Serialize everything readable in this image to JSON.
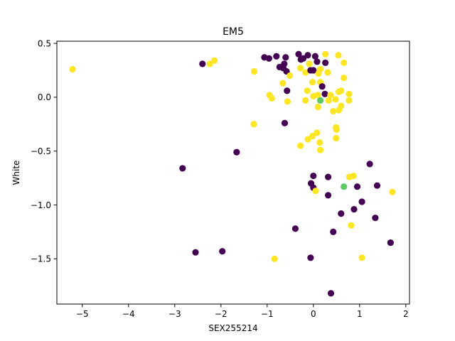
{
  "chart_data": {
    "type": "scatter",
    "title": "EM5",
    "xlabel": "SEX255214",
    "ylabel": "White",
    "xlim": [
      -5.55,
      2.08
    ],
    "ylim": [
      -1.92,
      0.52
    ],
    "xticks": [
      -5,
      -4,
      -3,
      -2,
      -1,
      0,
      1,
      2
    ],
    "xtick_labels": [
      "−5",
      "−4",
      "−3",
      "−2",
      "−1",
      "0",
      "1",
      "2"
    ],
    "yticks": [
      -1.5,
      -1.0,
      -0.5,
      0.0,
      0.5
    ],
    "ytick_labels": [
      "−1.5",
      "−1.0",
      "−0.5",
      "0.0",
      "0.5"
    ],
    "grid": false,
    "legend": false,
    "colors": {
      "purple": "#440154",
      "yellow": "#fde725",
      "green": "#5ec962"
    },
    "points": [
      {
        "x": -5.21,
        "y": 0.26,
        "c": "yellow"
      },
      {
        "x": -2.4,
        "y": 0.31,
        "c": "purple"
      },
      {
        "x": -2.24,
        "y": 0.31,
        "c": "yellow"
      },
      {
        "x": -2.14,
        "y": 0.34,
        "c": "yellow"
      },
      {
        "x": -1.28,
        "y": 0.24,
        "c": "yellow"
      },
      {
        "x": -1.06,
        "y": 0.37,
        "c": "purple"
      },
      {
        "x": -0.96,
        "y": 0.36,
        "c": "purple"
      },
      {
        "x": -0.8,
        "y": 0.38,
        "c": "purple"
      },
      {
        "x": -0.73,
        "y": 0.28,
        "c": "purple"
      },
      {
        "x": -0.65,
        "y": 0.27,
        "c": "purple"
      },
      {
        "x": -0.63,
        "y": 0.31,
        "c": "purple"
      },
      {
        "x": -0.6,
        "y": 0.37,
        "c": "purple"
      },
      {
        "x": -0.58,
        "y": 0.24,
        "c": "purple"
      },
      {
        "x": -0.51,
        "y": 0.2,
        "c": "yellow"
      },
      {
        "x": -0.32,
        "y": 0.4,
        "c": "purple"
      },
      {
        "x": -0.27,
        "y": 0.35,
        "c": "purple"
      },
      {
        "x": -0.22,
        "y": 0.36,
        "c": "purple"
      },
      {
        "x": -0.12,
        "y": 0.39,
        "c": "purple"
      },
      {
        "x": 0.04,
        "y": 0.38,
        "c": "purple"
      },
      {
        "x": -0.28,
        "y": 0.27,
        "c": "yellow"
      },
      {
        "x": -0.17,
        "y": 0.23,
        "c": "yellow"
      },
      {
        "x": -0.09,
        "y": 0.31,
        "c": "yellow"
      },
      {
        "x": -0.06,
        "y": 0.25,
        "c": "purple"
      },
      {
        "x": 0.0,
        "y": 0.25,
        "c": "purple"
      },
      {
        "x": 0.08,
        "y": 0.33,
        "c": "purple"
      },
      {
        "x": 0.11,
        "y": 0.22,
        "c": "yellow"
      },
      {
        "x": 0.15,
        "y": 0.26,
        "c": "yellow"
      },
      {
        "x": 0.26,
        "y": 0.32,
        "c": "purple"
      },
      {
        "x": 0.26,
        "y": 0.4,
        "c": "yellow"
      },
      {
        "x": 0.31,
        "y": 0.23,
        "c": "yellow"
      },
      {
        "x": 0.54,
        "y": 0.39,
        "c": "yellow"
      },
      {
        "x": 0.66,
        "y": 0.32,
        "c": "yellow"
      },
      {
        "x": 0.66,
        "y": 0.18,
        "c": "yellow"
      },
      {
        "x": -0.66,
        "y": 0.13,
        "c": "yellow"
      },
      {
        "x": -0.57,
        "y": 0.06,
        "c": "purple"
      },
      {
        "x": -0.02,
        "y": 0.14,
        "c": "yellow"
      },
      {
        "x": 0.15,
        "y": 0.14,
        "c": "yellow"
      },
      {
        "x": 0.19,
        "y": 0.1,
        "c": "purple"
      },
      {
        "x": -0.13,
        "y": 0.06,
        "c": "yellow"
      },
      {
        "x": 0.0,
        "y": 0.01,
        "c": "yellow"
      },
      {
        "x": 0.1,
        "y": 0.02,
        "c": "yellow"
      },
      {
        "x": 0.25,
        "y": 0.03,
        "c": "purple"
      },
      {
        "x": 0.37,
        "y": 0.02,
        "c": "yellow"
      },
      {
        "x": 0.55,
        "y": 0.05,
        "c": "yellow"
      },
      {
        "x": 0.6,
        "y": 0.06,
        "c": "yellow"
      },
      {
        "x": 0.77,
        "y": 0.03,
        "c": "yellow"
      },
      {
        "x": -0.95,
        "y": 0.02,
        "c": "yellow"
      },
      {
        "x": -0.9,
        "y": -0.01,
        "c": "yellow"
      },
      {
        "x": -0.56,
        "y": -0.04,
        "c": "yellow"
      },
      {
        "x": -0.17,
        "y": -0.03,
        "c": "yellow"
      },
      {
        "x": 0.33,
        "y": -0.03,
        "c": "yellow"
      },
      {
        "x": 0.48,
        "y": -0.02,
        "c": "yellow"
      },
      {
        "x": 0.6,
        "y": -0.08,
        "c": "yellow"
      },
      {
        "x": 0.77,
        "y": -0.03,
        "c": "yellow"
      },
      {
        "x": 0.1,
        "y": -0.09,
        "c": "yellow"
      },
      {
        "x": 0.43,
        "y": -0.13,
        "c": "yellow"
      },
      {
        "x": 0.55,
        "y": -0.12,
        "c": "yellow"
      },
      {
        "x": 0.15,
        "y": -0.03,
        "c": "green"
      },
      {
        "x": -1.29,
        "y": -0.25,
        "c": "yellow"
      },
      {
        "x": -0.62,
        "y": -0.24,
        "c": "purple"
      },
      {
        "x": 0.49,
        "y": -0.28,
        "c": "yellow"
      },
      {
        "x": 0.5,
        "y": -0.3,
        "c": "yellow"
      },
      {
        "x": 0.08,
        "y": -0.33,
        "c": "yellow"
      },
      {
        "x": -0.02,
        "y": -0.36,
        "c": "yellow"
      },
      {
        "x": -0.12,
        "y": -0.39,
        "c": "yellow"
      },
      {
        "x": 0.49,
        "y": -0.38,
        "c": "yellow"
      },
      {
        "x": 0.14,
        "y": -0.42,
        "c": "yellow"
      },
      {
        "x": -0.28,
        "y": -0.45,
        "c": "yellow"
      },
      {
        "x": 0.15,
        "y": -0.49,
        "c": "yellow"
      },
      {
        "x": -1.66,
        "y": -0.51,
        "c": "purple"
      },
      {
        "x": -2.83,
        "y": -0.66,
        "c": "purple"
      },
      {
        "x": 1.22,
        "y": -0.62,
        "c": "purple"
      },
      {
        "x": 0.0,
        "y": -0.73,
        "c": "purple"
      },
      {
        "x": 0.32,
        "y": -0.74,
        "c": "purple"
      },
      {
        "x": 0.78,
        "y": -0.74,
        "c": "yellow"
      },
      {
        "x": 0.87,
        "y": -0.73,
        "c": "yellow"
      },
      {
        "x": -0.05,
        "y": -0.8,
        "c": "purple"
      },
      {
        "x": 0.0,
        "y": -0.84,
        "c": "purple"
      },
      {
        "x": 0.05,
        "y": -0.87,
        "c": "yellow"
      },
      {
        "x": 0.66,
        "y": -0.83,
        "c": "green"
      },
      {
        "x": 0.95,
        "y": -0.83,
        "c": "purple"
      },
      {
        "x": 1.38,
        "y": -0.82,
        "c": "purple"
      },
      {
        "x": 1.71,
        "y": -0.88,
        "c": "yellow"
      },
      {
        "x": 0.32,
        "y": -0.91,
        "c": "purple"
      },
      {
        "x": 1.05,
        "y": -0.97,
        "c": "purple"
      },
      {
        "x": 0.88,
        "y": -1.04,
        "c": "purple"
      },
      {
        "x": 0.6,
        "y": -1.08,
        "c": "purple"
      },
      {
        "x": 1.34,
        "y": -1.12,
        "c": "purple"
      },
      {
        "x": 0.82,
        "y": -1.19,
        "c": "yellow"
      },
      {
        "x": -0.39,
        "y": -1.22,
        "c": "purple"
      },
      {
        "x": 0.43,
        "y": -1.25,
        "c": "purple"
      },
      {
        "x": 1.67,
        "y": -1.35,
        "c": "purple"
      },
      {
        "x": -2.55,
        "y": -1.44,
        "c": "purple"
      },
      {
        "x": -1.97,
        "y": -1.43,
        "c": "purple"
      },
      {
        "x": -0.06,
        "y": -1.49,
        "c": "purple"
      },
      {
        "x": 1.05,
        "y": -1.49,
        "c": "yellow"
      },
      {
        "x": -0.84,
        "y": -1.5,
        "c": "yellow"
      },
      {
        "x": 0.38,
        "y": -1.82,
        "c": "purple"
      }
    ]
  }
}
